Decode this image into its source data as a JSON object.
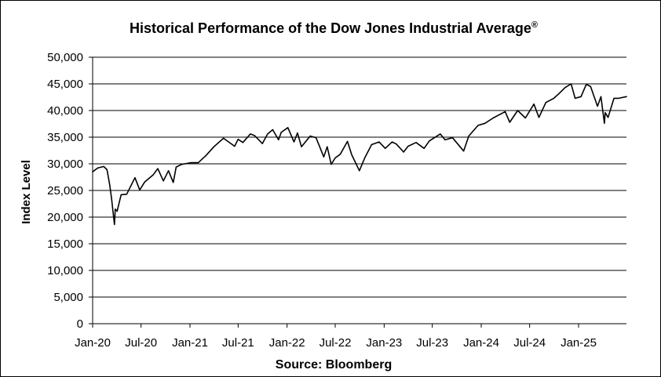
{
  "chart_data": {
    "type": "line",
    "title": "Historical Performance of the Dow Jones Industrial Average",
    "title_superscript": "®",
    "ylabel": "Index Level",
    "xlabel": "",
    "source": "Source: Bloomberg",
    "ylim": [
      0,
      50000
    ],
    "yticks": [
      0,
      5000,
      10000,
      15000,
      20000,
      25000,
      30000,
      35000,
      40000,
      45000,
      50000
    ],
    "ytick_labels": [
      "0",
      "5,000",
      "10,000",
      "15,000",
      "20,000",
      "25,000",
      "30,000",
      "35,000",
      "40,000",
      "45,000",
      "50,000"
    ],
    "xlim": [
      "2020-01-01",
      "2025-06-30"
    ],
    "xticks": [
      "2020-01-01",
      "2020-07-01",
      "2021-01-01",
      "2021-07-01",
      "2022-01-01",
      "2022-07-01",
      "2023-01-01",
      "2023-07-01",
      "2024-01-01",
      "2024-07-01",
      "2025-01-01"
    ],
    "xtick_labels": [
      "Jan-20",
      "Jul-20",
      "Jan-21",
      "Jul-21",
      "Jan-22",
      "Jul-22",
      "Jan-23",
      "Jul-23",
      "Jan-24",
      "Jul-24",
      "Jan-25"
    ],
    "grid": "horizontal",
    "line_color": "#000000",
    "series": [
      {
        "x": [
          "2020-01-01",
          "2020-01-20",
          "2020-02-12",
          "2020-02-24",
          "2020-03-05",
          "2020-03-12",
          "2020-03-23",
          "2020-03-26",
          "2020-04-02",
          "2020-04-17",
          "2020-05-08",
          "2020-06-08",
          "2020-06-26",
          "2020-07-15",
          "2020-08-15",
          "2020-09-02",
          "2020-09-23",
          "2020-10-12",
          "2020-10-30",
          "2020-11-10",
          "2020-12-01",
          "2021-01-04",
          "2021-02-01",
          "2021-03-01",
          "2021-04-01",
          "2021-05-07",
          "2021-06-18",
          "2021-07-01",
          "2021-07-19",
          "2021-08-16",
          "2021-09-01",
          "2021-09-30",
          "2021-10-20",
          "2021-11-08",
          "2021-11-30",
          "2021-12-10",
          "2022-01-04",
          "2022-01-27",
          "2022-02-09",
          "2022-02-24",
          "2022-03-29",
          "2022-04-20",
          "2022-05-19",
          "2022-06-01",
          "2022-06-16",
          "2022-07-01",
          "2022-07-20",
          "2022-08-16",
          "2022-09-01",
          "2022-09-30",
          "2022-10-20",
          "2022-11-15",
          "2022-12-13",
          "2023-01-05",
          "2023-01-31",
          "2023-02-16",
          "2023-03-15",
          "2023-04-01",
          "2023-05-01",
          "2023-05-31",
          "2023-06-20",
          "2023-07-31",
          "2023-08-18",
          "2023-09-15",
          "2023-10-27",
          "2023-11-15",
          "2023-12-20",
          "2024-01-15",
          "2024-02-15",
          "2024-03-31",
          "2024-04-17",
          "2024-05-17",
          "2024-06-15",
          "2024-07-17",
          "2024-08-05",
          "2024-08-31",
          "2024-09-30",
          "2024-10-20",
          "2024-11-11",
          "2024-12-04",
          "2024-12-19",
          "2025-01-10",
          "2025-01-30",
          "2025-02-15",
          "2025-03-13",
          "2025-03-26",
          "2025-04-08",
          "2025-04-11",
          "2025-04-22",
          "2025-05-14",
          "2025-06-01",
          "2025-06-30"
        ],
        "values": [
          28500,
          29200,
          29500,
          28900,
          26100,
          23500,
          18600,
          21500,
          21100,
          24200,
          24300,
          27400,
          25100,
          26600,
          27900,
          29100,
          26800,
          28700,
          26500,
          29400,
          29900,
          30200,
          30200,
          31500,
          33200,
          34800,
          33300,
          34600,
          34000,
          35600,
          35300,
          33800,
          35600,
          36400,
          34500,
          35900,
          36800,
          34100,
          35800,
          33200,
          35200,
          34900,
          31300,
          33200,
          29900,
          31100,
          31800,
          34200,
          31700,
          28700,
          31100,
          33600,
          34100,
          32900,
          34100,
          33700,
          32200,
          33300,
          34000,
          32900,
          34300,
          35600,
          34500,
          34900,
          32400,
          35200,
          37200,
          37600,
          38600,
          39800,
          37800,
          40000,
          38600,
          41200,
          38700,
          41500,
          42300,
          43200,
          44300,
          45000,
          42300,
          42600,
          44900,
          44500,
          40800,
          42600,
          37600,
          39600,
          38700,
          42300,
          42300,
          42600
        ]
      }
    ]
  }
}
